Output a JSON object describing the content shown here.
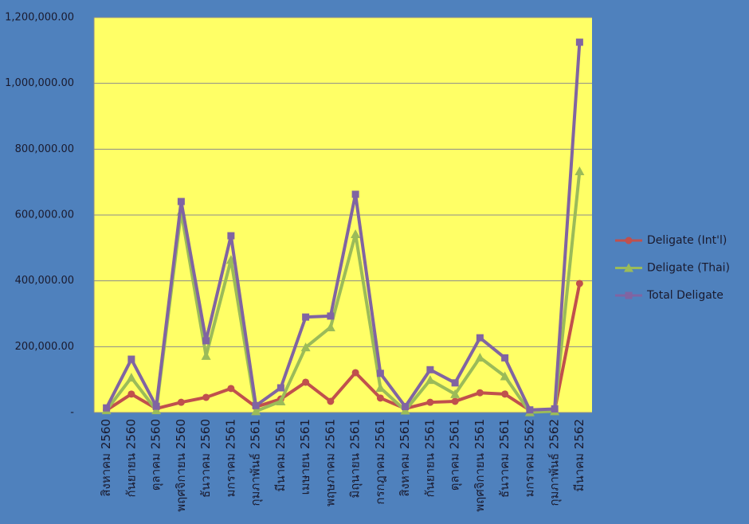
{
  "chart_data": {
    "type": "line",
    "categories": [
      "สิงหาคม 2560",
      "กันยายน 2560",
      "ตุลาคม 2560",
      "พฤศจิกายน 2560",
      "ธันวาคม 2560",
      "มกราคม 2561",
      "กุมภาพันธ์ 2561",
      "มีนาคม 2561",
      "เมษายน 2561",
      "พฤษภาคม 2561",
      "มิถุนายน 2561",
      "กรกฎาคม 2561",
      "สิงหาคม 2561",
      "กันยายน 2561",
      "ตุลาคม 2561",
      "พฤศจิกายน 2561",
      "ธันวาคม 2561",
      "มกราคม 2562",
      "กุมภาพันธ์ 2562",
      "มีนาคม 2562"
    ],
    "series": [
      {
        "name": "Deligate (Int'l)",
        "color": "#c0504d",
        "marker": "circle",
        "values": [
          7000,
          56000,
          12000,
          31000,
          46000,
          73000,
          17000,
          41000,
          92000,
          34000,
          121000,
          44000,
          12000,
          31000,
          34000,
          60000,
          56000,
          7000,
          7000,
          392000
        ]
      },
      {
        "name": "Deligate (Thai)",
        "color": "#9bbb59",
        "marker": "triangle",
        "values": [
          7000,
          106000,
          7000,
          610000,
          172000,
          464000,
          4000,
          34000,
          198000,
          259000,
          542000,
          75000,
          6000,
          99000,
          56000,
          167000,
          110000,
          1000,
          4000,
          733000
        ]
      },
      {
        "name": "Total Deligate",
        "color": "#8064a2",
        "marker": "square",
        "values": [
          14000,
          162000,
          19000,
          641000,
          218000,
          537000,
          21000,
          75000,
          290000,
          293000,
          663000,
          119000,
          18000,
          130000,
          90000,
          227000,
          166000,
          8000,
          11000,
          1125000
        ]
      }
    ],
    "ylim": [
      0,
      1200000
    ],
    "yticks": [
      {
        "value": 0,
        "label": "-"
      },
      {
        "value": 200000,
        "label": "200,000.00"
      },
      {
        "value": 400000,
        "label": "400,000.00"
      },
      {
        "value": 600000,
        "label": "600,000.00"
      },
      {
        "value": 800000,
        "label": "800,000.00"
      },
      {
        "value": 1000000,
        "label": "1,000,000.00"
      },
      {
        "value": 1200000,
        "label": "1,200,000.00"
      }
    ],
    "grid": true,
    "legend": "right"
  }
}
